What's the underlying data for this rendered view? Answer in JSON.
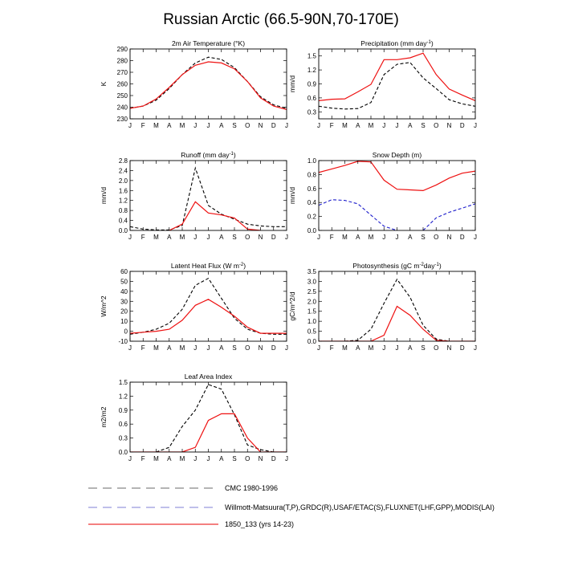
{
  "title": "Russian Arctic (66.5-90N,70-170E)",
  "months": [
    "J",
    "F",
    "M",
    "A",
    "M",
    "J",
    "J",
    "A",
    "S",
    "O",
    "N",
    "D",
    "J"
  ],
  "legend": [
    {
      "label": "CMC 1980-1996",
      "color": "#888888",
      "dash": "long"
    },
    {
      "label": "Willmott-Matsuura(T,P),GRDC(R),USAF/ETAC(S),FLUXNET(LHF,GPP),MODIS(LAI)",
      "color": "#9999dd",
      "dash": "long"
    },
    {
      "label": "1850_133 (yrs 14-23)",
      "color": "#ee3333",
      "dash": "solid"
    }
  ],
  "chart_data": [
    {
      "type": "line",
      "title": "2m Air Temperature (°K)",
      "ylabel": "K",
      "ylim": [
        230,
        290
      ],
      "yticks": [
        230,
        240,
        250,
        260,
        270,
        280,
        290
      ],
      "ytick_labels": [
        "230",
        "240",
        "250",
        "260",
        "270",
        "280",
        "290"
      ],
      "series": [
        {
          "name": "obs",
          "color": "#000000",
          "dash": "dashed",
          "values": [
            239,
            241,
            246,
            256,
            268,
            278,
            283,
            281,
            274,
            262,
            249,
            242,
            239
          ]
        },
        {
          "name": "model",
          "color": "#ee1111",
          "dash": "solid",
          "values": [
            239,
            241,
            247,
            257,
            268,
            276,
            279,
            278,
            273,
            262,
            248,
            241,
            238
          ]
        }
      ]
    },
    {
      "type": "line",
      "title": "Precipitation (mm day-1)",
      "ylabel": "mm/d",
      "ylim": [
        0.15,
        1.65
      ],
      "yticks": [
        0.3,
        0.6,
        0.9,
        1.2,
        1.5
      ],
      "ytick_labels": [
        "0.3",
        "0.6",
        "0.9",
        "1.2",
        "1.5"
      ],
      "series": [
        {
          "name": "obs",
          "color": "#000000",
          "dash": "dashed",
          "values": [
            0.42,
            0.38,
            0.36,
            0.37,
            0.5,
            1.1,
            1.32,
            1.36,
            1.03,
            0.8,
            0.56,
            0.47,
            0.42
          ]
        },
        {
          "name": "model",
          "color": "#ee1111",
          "dash": "solid",
          "values": [
            0.54,
            0.57,
            0.58,
            0.73,
            0.89,
            1.42,
            1.42,
            1.46,
            1.56,
            1.1,
            0.79,
            0.66,
            0.54
          ]
        }
      ]
    },
    {
      "type": "line",
      "title": "Runoff (mm day-1)",
      "ylabel": "mm/d",
      "ylim": [
        0,
        2.8
      ],
      "yticks": [
        0,
        0.4,
        0.8,
        1.2,
        1.6,
        2.0,
        2.4,
        2.8
      ],
      "ytick_labels": [
        "0.0",
        "0.4",
        "0.8",
        "1.2",
        "1.6",
        "2.0",
        "2.4",
        "2.8"
      ],
      "series": [
        {
          "name": "obs",
          "color": "#000000",
          "dash": "dashed",
          "values": [
            0.15,
            0.05,
            0.02,
            0.02,
            0.2,
            2.5,
            1.0,
            0.65,
            0.45,
            0.25,
            0.18,
            0.15,
            0.15
          ]
        },
        {
          "name": "model",
          "color": "#ee1111",
          "dash": "solid",
          "values": [
            null,
            null,
            null,
            0.0,
            0.25,
            1.15,
            0.7,
            0.62,
            0.5,
            0.05,
            0.0,
            null,
            null
          ]
        }
      ]
    },
    {
      "type": "line",
      "title": "Snow Depth (m)",
      "ylabel": "mm/d",
      "ylim": [
        0,
        1.0
      ],
      "yticks": [
        0,
        0.2,
        0.4,
        0.6,
        0.8,
        1.0
      ],
      "ytick_labels": [
        "0.0",
        "0.2",
        "0.4",
        "0.6",
        "0.8",
        "1.0"
      ],
      "series": [
        {
          "name": "obs",
          "color": "#1f1fcc",
          "dash": "dashed",
          "values": [
            0.36,
            0.44,
            0.43,
            0.38,
            0.22,
            0.06,
            0.0,
            null,
            0.0,
            0.18,
            0.26,
            0.32,
            0.38
          ]
        },
        {
          "name": "model",
          "color": "#ee1111",
          "dash": "solid",
          "values": [
            0.83,
            0.88,
            0.93,
            0.99,
            0.98,
            0.72,
            0.59,
            0.58,
            0.57,
            0.65,
            0.75,
            0.82,
            0.85
          ]
        }
      ]
    },
    {
      "type": "line",
      "title": "Latent Heat Flux (W m-2)",
      "ylabel": "W/m^2",
      "ylim": [
        -10,
        60
      ],
      "yticks": [
        -10,
        0,
        10,
        20,
        30,
        40,
        50,
        60
      ],
      "ytick_labels": [
        "-10",
        "0",
        "10",
        "20",
        "30",
        "40",
        "50",
        "60"
      ],
      "series": [
        {
          "name": "obs",
          "color": "#000000",
          "dash": "dashed",
          "values": [
            -3,
            -1,
            2,
            8,
            22,
            46,
            53,
            33,
            13,
            2,
            -2,
            -3,
            -3
          ]
        },
        {
          "name": "model",
          "color": "#ee1111",
          "dash": "solid",
          "values": [
            -2,
            -1,
            0,
            2,
            11,
            26,
            32,
            24,
            15,
            4,
            -2,
            -2,
            -2
          ]
        }
      ]
    },
    {
      "type": "line",
      "title": "Photosynthesis (gC m-2day-1)",
      "ylabel": "gC/m^2/d",
      "ylim": [
        0,
        3.5
      ],
      "yticks": [
        0,
        0.5,
        1.0,
        1.5,
        2.0,
        2.5,
        3.0,
        3.5
      ],
      "ytick_labels": [
        "0.0",
        "0.5",
        "1.0",
        "1.5",
        "2.0",
        "2.5",
        "3.0",
        "3.5"
      ],
      "series": [
        {
          "name": "obs",
          "color": "#000000",
          "dash": "dashed",
          "values": [
            0,
            0,
            0,
            0.05,
            0.6,
            1.9,
            3.1,
            2.2,
            0.8,
            0.1,
            0,
            0,
            0
          ]
        },
        {
          "name": "model",
          "color": "#ee1111",
          "dash": "solid",
          "values": [
            0,
            0,
            0,
            0,
            0,
            0.3,
            1.75,
            1.3,
            0.6,
            0.05,
            0,
            0,
            0
          ]
        }
      ]
    },
    {
      "type": "line",
      "title": "Leaf Area Index",
      "ylabel": "m2/m2",
      "ylim": [
        0,
        1.5
      ],
      "yticks": [
        0,
        0.3,
        0.6,
        0.9,
        1.2,
        1.5
      ],
      "ytick_labels": [
        "0.0",
        "0.3",
        "0.6",
        "0.9",
        "1.2",
        "1.5"
      ],
      "series": [
        {
          "name": "obs",
          "color": "#000000",
          "dash": "dashed",
          "values": [
            0,
            0,
            0,
            0.1,
            0.55,
            0.9,
            1.45,
            1.35,
            0.8,
            0.15,
            0.05,
            0,
            0
          ]
        },
        {
          "name": "model",
          "color": "#ee1111",
          "dash": "solid",
          "values": [
            0,
            0,
            0,
            0,
            0,
            0.1,
            0.68,
            0.82,
            0.82,
            0.3,
            0,
            0,
            0
          ]
        }
      ]
    }
  ]
}
